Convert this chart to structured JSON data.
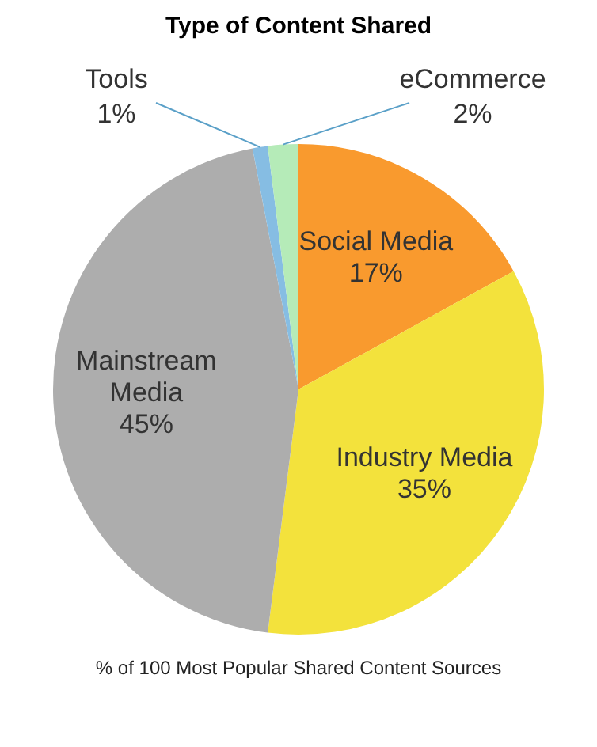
{
  "chart_data": {
    "type": "pie",
    "title": "Type of Content Shared",
    "categories": [
      "Social Media",
      "Industry Media",
      "Mainstream Media",
      "Tools",
      "eCommerce"
    ],
    "values": [
      17,
      35,
      45,
      1,
      2
    ],
    "colors": [
      "#f99a2e",
      "#f3e23c",
      "#adadad",
      "#86bde3",
      "#b5ebb8"
    ],
    "value_labels": [
      "17%",
      "35%",
      "45%",
      "1%",
      "2%"
    ],
    "legend": false,
    "annotations": [
      "% of 100 Most Popular Shared Content Sources"
    ]
  }
}
